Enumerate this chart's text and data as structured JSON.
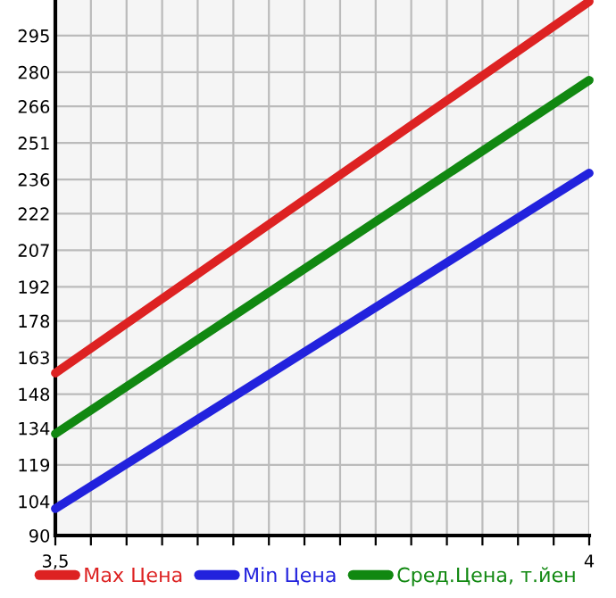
{
  "chart_data": {
    "type": "line",
    "x": [
      3.5,
      4
    ],
    "series": [
      {
        "name": "Max Цена",
        "color": "#dd2222",
        "values": [
          156.6,
          309
        ]
      },
      {
        "name": "Min Цена",
        "color": "#2222dd",
        "values": [
          101,
          238.6
        ]
      },
      {
        "name": "Сред.Цена, т.йен",
        "color": "#118811",
        "values": [
          131.7,
          276.7
        ]
      }
    ],
    "xlim": [
      3.5,
      4
    ],
    "xticks": [
      {
        "value": 3.5,
        "label": "3,5"
      },
      {
        "value": 3.5333,
        "label": null
      },
      {
        "value": 3.5667,
        "label": null
      },
      {
        "value": 3.6,
        "label": null
      },
      {
        "value": 3.6333,
        "label": null
      },
      {
        "value": 3.6667,
        "label": null
      },
      {
        "value": 3.7,
        "label": null
      },
      {
        "value": 3.7333,
        "label": null
      },
      {
        "value": 3.7667,
        "label": null
      },
      {
        "value": 3.8,
        "label": null
      },
      {
        "value": 3.8333,
        "label": null
      },
      {
        "value": 3.8667,
        "label": null
      },
      {
        "value": 3.9,
        "label": null
      },
      {
        "value": 3.9333,
        "label": null
      },
      {
        "value": 3.9667,
        "label": null
      },
      {
        "value": 4,
        "label": "4"
      }
    ],
    "ylim": [
      90,
      309.6
    ],
    "yticks": [
      90,
      104,
      119,
      134,
      148,
      163,
      178,
      192,
      207,
      222,
      236,
      251,
      266,
      280,
      295
    ],
    "grid": true,
    "legend": "bottom",
    "marker": "none",
    "line_style": "solid"
  }
}
